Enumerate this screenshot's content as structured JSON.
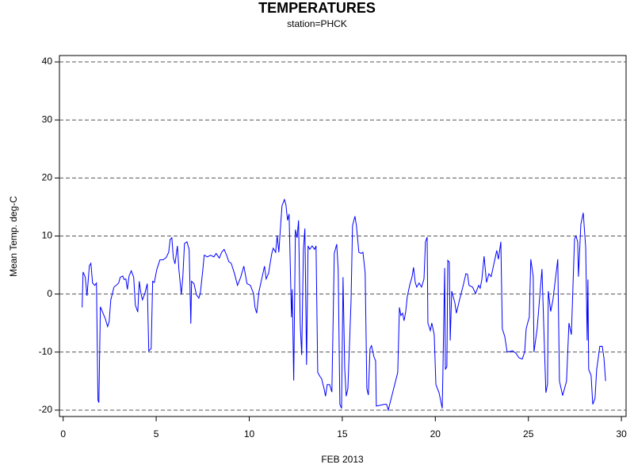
{
  "chart_data": {
    "type": "line",
    "title": "TEMPERATURES",
    "subtitle": "station=PHCK",
    "x_label": "FEB 2013",
    "y_label": "Mean Temp. deg-C",
    "xlim": [
      -0.2,
      30.25
    ],
    "xticks": [
      0,
      5,
      10,
      15,
      20,
      25,
      30
    ],
    "ylim": [
      -21.1,
      41.1
    ],
    "yticks": [
      -20,
      -10,
      0,
      10,
      20,
      30,
      40
    ],
    "grid": true,
    "series": [
      {
        "name": "Mean Temp.",
        "color": "#0000ff",
        "x": [
          1.02,
          1.07,
          1.19,
          1.28,
          1.41,
          1.49,
          1.58,
          1.7,
          1.79,
          1.87,
          1.92,
          2.0,
          2.09,
          2.26,
          2.39,
          2.47,
          2.56,
          2.73,
          2.85,
          2.98,
          3.07,
          3.2,
          3.28,
          3.37,
          3.45,
          3.54,
          3.66,
          3.79,
          3.88,
          4.01,
          4.09,
          4.18,
          4.26,
          4.39,
          4.52,
          4.6,
          4.73,
          4.81,
          4.9,
          5.03,
          5.2,
          5.37,
          5.54,
          5.67,
          5.75,
          5.84,
          5.92,
          6.01,
          6.14,
          6.22,
          6.35,
          6.43,
          6.52,
          6.65,
          6.77,
          6.86,
          6.9,
          7.03,
          7.16,
          7.29,
          7.37,
          7.5,
          7.58,
          7.75,
          7.92,
          8.1,
          8.22,
          8.39,
          8.52,
          8.65,
          8.78,
          8.9,
          9.03,
          9.2,
          9.37,
          9.54,
          9.71,
          9.88,
          10.06,
          10.23,
          10.31,
          10.4,
          10.52,
          10.69,
          10.82,
          10.91,
          11.04,
          11.21,
          11.29,
          11.42,
          11.5,
          11.59,
          11.67,
          11.76,
          11.89,
          11.97,
          12.06,
          12.14,
          12.27,
          12.31,
          12.39,
          12.48,
          12.57,
          12.65,
          12.74,
          12.82,
          12.91,
          12.99,
          13.08,
          13.16,
          13.25,
          13.38,
          13.51,
          13.59,
          13.68,
          13.8,
          13.89,
          14.02,
          14.1,
          14.19,
          14.32,
          14.44,
          14.57,
          14.7,
          14.78,
          14.87,
          14.96,
          15.04,
          15.13,
          15.21,
          15.3,
          15.38,
          15.47,
          15.55,
          15.68,
          15.76,
          15.89,
          16.02,
          16.11,
          16.23,
          16.32,
          16.4,
          16.49,
          16.57,
          16.7,
          16.79,
          16.83,
          17.26,
          17.38,
          17.47,
          17.98,
          18.07,
          18.15,
          18.24,
          18.32,
          18.41,
          18.49,
          18.62,
          18.75,
          18.83,
          18.92,
          19.0,
          19.13,
          19.26,
          19.39,
          19.47,
          19.56,
          19.6,
          19.73,
          19.81,
          19.94,
          20.03,
          20.2,
          20.37,
          20.41,
          20.5,
          20.54,
          20.62,
          20.67,
          20.75,
          20.8,
          20.88,
          21.05,
          21.13,
          21.3,
          21.5,
          21.64,
          21.73,
          21.81,
          22.0,
          22.16,
          22.33,
          22.41,
          22.5,
          22.62,
          22.75,
          22.88,
          23.0,
          23.3,
          23.39,
          23.52,
          23.6,
          23.73,
          23.86,
          24.15,
          24.33,
          24.5,
          24.67,
          24.8,
          24.88,
          24.96,
          25.05,
          25.13,
          25.26,
          25.3,
          25.47,
          25.73,
          25.94,
          26.03,
          26.07,
          26.2,
          26.32,
          26.58,
          26.67,
          26.84,
          27.05,
          27.18,
          27.31,
          27.48,
          27.56,
          27.65,
          27.69,
          27.82,
          27.95,
          28.08,
          28.16,
          28.2,
          28.24,
          28.37,
          28.46,
          28.58,
          28.67,
          28.84,
          28.97,
          29.06,
          29.15
        ],
        "values": [
          -2.3,
          3.8,
          2.9,
          -0.3,
          4.9,
          5.3,
          1.9,
          1.5,
          1.9,
          -18.3,
          -18.7,
          -2.2,
          -2.9,
          -4.2,
          -5.6,
          -4.8,
          -1.0,
          1.2,
          1.5,
          1.9,
          2.9,
          3.1,
          2.5,
          2.6,
          0.8,
          3.1,
          4.0,
          2.9,
          -1.9,
          -3.1,
          2.2,
          0.1,
          -1.0,
          0.1,
          1.8,
          -9.8,
          -9.4,
          2.2,
          2.0,
          4.2,
          5.9,
          5.9,
          6.3,
          7.2,
          9.4,
          9.7,
          6.3,
          5.2,
          8.3,
          4.2,
          -0.1,
          2.9,
          8.7,
          9.0,
          7.7,
          -5.1,
          2.2,
          1.8,
          -0.1,
          -0.7,
          0.1,
          4.0,
          6.7,
          6.4,
          6.7,
          6.4,
          7.0,
          6.2,
          7.2,
          7.7,
          6.7,
          5.6,
          5.3,
          3.6,
          1.5,
          2.9,
          4.8,
          1.8,
          1.5,
          0.1,
          -2.3,
          -3.3,
          0.4,
          2.9,
          4.8,
          2.6,
          3.6,
          7.0,
          7.9,
          7.2,
          10.1,
          7.2,
          11.1,
          15.2,
          16.3,
          15.4,
          12.7,
          13.8,
          -4.0,
          0.8,
          -14.9,
          11.1,
          9.7,
          12.7,
          -5.3,
          -10.5,
          7.7,
          11.3,
          -12.2,
          8.3,
          7.7,
          8.3,
          7.7,
          8.3,
          -13.5,
          -14.2,
          -14.6,
          -16.3,
          -17.6,
          -15.6,
          -15.6,
          -16.9,
          7.0,
          8.6,
          4.2,
          -19.0,
          -19.7,
          2.9,
          -12.8,
          -17.6,
          -16.3,
          -9.4,
          -1.2,
          11.8,
          13.4,
          11.8,
          7.2,
          7.0,
          7.2,
          3.6,
          -16.3,
          -17.4,
          -9.4,
          -8.9,
          -10.8,
          -11.5,
          -19.3,
          -19.0,
          -19.0,
          -20.0,
          -13.5,
          -2.3,
          -3.7,
          -3.3,
          -4.6,
          -3.0,
          -0.5,
          1.5,
          3.0,
          4.6,
          2.0,
          1.2,
          1.9,
          1.2,
          2.6,
          9.0,
          9.8,
          -5.0,
          -6.3,
          -5.0,
          -7.0,
          -15.6,
          -17.0,
          -19.7,
          -13.0,
          4.5,
          -13.0,
          -12.5,
          5.8,
          5.5,
          -8.0,
          0.5,
          -1.5,
          -3.3,
          -1.0,
          1.5,
          3.5,
          3.4,
          1.5,
          1.2,
          0.1,
          1.5,
          1.0,
          2.5,
          6.5,
          2.0,
          3.5,
          3.0,
          7.5,
          6.0,
          9.0,
          -6.0,
          -7.3,
          -10.0,
          -9.8,
          -10.2,
          -11.0,
          -11.2,
          -10.0,
          -6.0,
          -5.0,
          -4.0,
          6.0,
          3.0,
          -10.0,
          -6.0,
          4.3,
          -17.0,
          -15.5,
          0.5,
          -3.0,
          -1.0,
          6.0,
          -15.0,
          -17.5,
          -15.0,
          -5.0,
          -7.0,
          9.5,
          10.0,
          9.0,
          3.0,
          12.0,
          14.0,
          8.0,
          -8.0,
          2.5,
          -13.0,
          -14.0,
          -19.0,
          -18.0,
          -13.0,
          -9.0,
          -9.0,
          -11.0,
          -15.0
        ]
      }
    ]
  }
}
